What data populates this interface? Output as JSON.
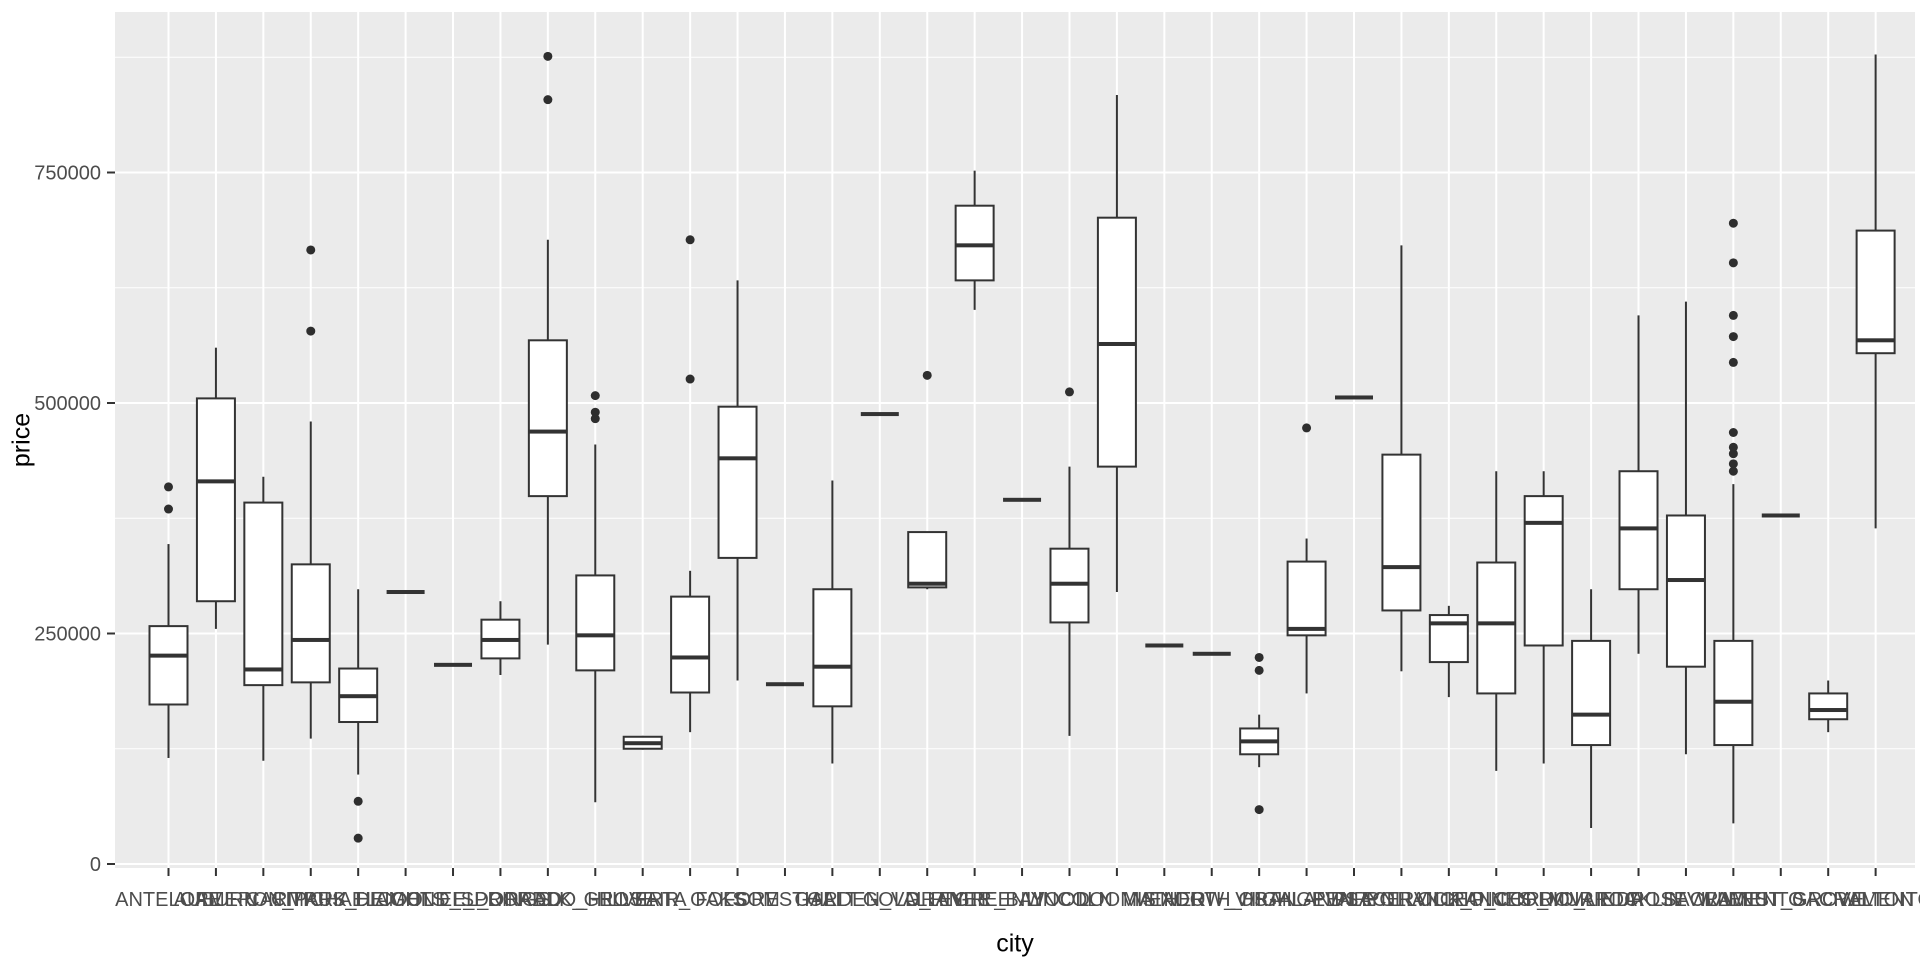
{
  "style": {
    "background": "#FFFFFF",
    "panel_background": "#EBEBEB",
    "grid_color": "#FFFFFF",
    "box_stroke": "#333333",
    "box_fill": "#FFFFFF",
    "outlier_color": "#2E2E2E",
    "axis_text_color": "#4D4D4D",
    "axis_title_color": "#000000",
    "tick_color": "#333333"
  },
  "chart_data": {
    "type": "boxplot",
    "title": "",
    "xlabel": "city",
    "ylabel": "price",
    "grid": true,
    "legend": "none",
    "ylim": [
      -4300,
      924000
    ],
    "y_breaks": [
      0,
      250000,
      500000,
      750000
    ],
    "y_break_labels": [
      "0",
      "250000",
      "500000",
      "750000"
    ],
    "y_minor_breaks": [
      125000,
      375000,
      625000,
      875000
    ],
    "categories": [
      "ANTELOPE",
      "AUBURN",
      "CAMERON_PARK",
      "CARMICHAEL",
      "CITRUS_HEIGHTS",
      "COOL",
      "DIAMOND_SPRINGS",
      "EL_DORADO",
      "EL_DORADO_HILLS",
      "ELK_GROVE",
      "ELVERTA",
      "FAIR_OAKS",
      "FOLSOM",
      "FORESTHILL",
      "GALT",
      "GARDEN_VALLEY",
      "GOLD_RIVER",
      "GRANITE_BAY",
      "GREENWOOD",
      "LINCOLN",
      "LOOMIS",
      "MATHER",
      "MEADOW_VISTA",
      "NORTH_HIGHLANDS",
      "ORANGEVALE",
      "PENRYN",
      "PLACERVILLE",
      "POLLOCK_PINES",
      "RANCHO_CORDOVA",
      "RANCHO_MURIETA",
      "RIO_LINDA",
      "ROCKLIN",
      "ROSEVILLE",
      "SACRAMENTO",
      "WALNUT_GROVE",
      "WEST_SACRAMENTO",
      "WILTON"
    ],
    "series": [
      {
        "city": "ANTELOPE",
        "low": 115000,
        "q1": 173000,
        "median": 226000,
        "q3": 258000,
        "high": 347000,
        "outliers": [
          385000,
          409000
        ]
      },
      {
        "city": "AUBURN",
        "low": 255000,
        "q1": 285000,
        "median": 415000,
        "q3": 505000,
        "high": 560000,
        "outliers": []
      },
      {
        "city": "CAMERON_PARK",
        "low": 112000,
        "q1": 194000,
        "median": 211000,
        "q3": 392000,
        "high": 420000,
        "outliers": []
      },
      {
        "city": "CARMICHAEL",
        "low": 136000,
        "q1": 197000,
        "median": 243000,
        "q3": 325000,
        "high": 480000,
        "outliers": [
          578000,
          666000
        ]
      },
      {
        "city": "CITRUS_HEIGHTS",
        "low": 97000,
        "q1": 154000,
        "median": 182000,
        "q3": 212000,
        "high": 298000,
        "outliers": [
          68000,
          28000
        ]
      },
      {
        "city": "COOL",
        "low": 295000,
        "q1": 295000,
        "median": 295000,
        "q3": 295000,
        "high": 295000,
        "outliers": []
      },
      {
        "city": "DIAMOND_SPRINGS",
        "low": 216000,
        "q1": 216000,
        "median": 216000,
        "q3": 216000,
        "high": 216000,
        "outliers": []
      },
      {
        "city": "EL_DORADO",
        "low": 205000,
        "q1": 223000,
        "median": 243000,
        "q3": 265000,
        "high": 285000,
        "outliers": []
      },
      {
        "city": "EL_DORADO_HILLS",
        "low": 238000,
        "q1": 399000,
        "median": 469000,
        "q3": 568000,
        "high": 677000,
        "outliers": [
          829000,
          876000
        ]
      },
      {
        "city": "ELK_GROVE",
        "low": 67000,
        "q1": 210000,
        "median": 248000,
        "q3": 313000,
        "high": 455000,
        "outliers": [
          483000,
          490000,
          508000
        ]
      },
      {
        "city": "ELVERTA",
        "low": 124000,
        "q1": 125000,
        "median": 131000,
        "q3": 138000,
        "high": 139000,
        "outliers": []
      },
      {
        "city": "FAIR_OAKS",
        "low": 143000,
        "q1": 186000,
        "median": 224000,
        "q3": 290000,
        "high": 318000,
        "outliers": [
          526000,
          677000
        ]
      },
      {
        "city": "FOLSOM",
        "low": 199000,
        "q1": 332000,
        "median": 440000,
        "q3": 496000,
        "high": 633000,
        "outliers": []
      },
      {
        "city": "FORESTHILL",
        "low": 195000,
        "q1": 195000,
        "median": 195000,
        "q3": 195000,
        "high": 195000,
        "outliers": []
      },
      {
        "city": "GALT",
        "low": 109000,
        "q1": 171000,
        "median": 214000,
        "q3": 298000,
        "high": 416000,
        "outliers": []
      },
      {
        "city": "GARDEN_VALLEY",
        "low": 488000,
        "q1": 488000,
        "median": 488000,
        "q3": 488000,
        "high": 488000,
        "outliers": []
      },
      {
        "city": "GOLD_RIVER",
        "low": 298000,
        "q1": 300000,
        "median": 304000,
        "q3": 360000,
        "high": 360000,
        "outliers": [
          530000
        ]
      },
      {
        "city": "GRANITE_BAY",
        "low": 601000,
        "q1": 633000,
        "median": 671000,
        "q3": 714000,
        "high": 752000,
        "outliers": []
      },
      {
        "city": "GREENWOOD",
        "low": 395000,
        "q1": 395000,
        "median": 395000,
        "q3": 395000,
        "high": 395000,
        "outliers": []
      },
      {
        "city": "LINCOLN",
        "low": 139000,
        "q1": 262000,
        "median": 304000,
        "q3": 342000,
        "high": 431000,
        "outliers": [
          512000
        ]
      },
      {
        "city": "LOOMIS",
        "low": 295000,
        "q1": 431000,
        "median": 564000,
        "q3": 701000,
        "high": 834000,
        "outliers": []
      },
      {
        "city": "MATHER",
        "low": 237000,
        "q1": 237000,
        "median": 237000,
        "q3": 237000,
        "high": 237000,
        "outliers": []
      },
      {
        "city": "MEADOW_VISTA",
        "low": 228000,
        "q1": 228000,
        "median": 228000,
        "q3": 228000,
        "high": 228000,
        "outliers": []
      },
      {
        "city": "NORTH_HIGHLANDS",
        "low": 105000,
        "q1": 119000,
        "median": 133000,
        "q3": 147000,
        "high": 162000,
        "outliers": [
          59000,
          210000,
          224000
        ]
      },
      {
        "city": "ORANGEVALE",
        "low": 185000,
        "q1": 248000,
        "median": 255000,
        "q3": 328000,
        "high": 353000,
        "outliers": [
          473000
        ]
      },
      {
        "city": "PENRYN",
        "low": 506000,
        "q1": 506000,
        "median": 506000,
        "q3": 506000,
        "high": 506000,
        "outliers": []
      },
      {
        "city": "PLACERVILLE",
        "low": 209000,
        "q1": 275000,
        "median": 322000,
        "q3": 444000,
        "high": 671000,
        "outliers": []
      },
      {
        "city": "POLLOCK_PINES",
        "low": 181000,
        "q1": 219000,
        "median": 261000,
        "q3": 270000,
        "high": 280000,
        "outliers": []
      },
      {
        "city": "RANCHO_CORDOVA",
        "low": 101000,
        "q1": 185000,
        "median": 261000,
        "q3": 327000,
        "high": 426000,
        "outliers": []
      },
      {
        "city": "RANCHO_MURIETA",
        "low": 109000,
        "q1": 237000,
        "median": 370000,
        "q3": 399000,
        "high": 426000,
        "outliers": []
      },
      {
        "city": "RIO_LINDA",
        "low": 39000,
        "q1": 129000,
        "median": 162000,
        "q3": 242000,
        "high": 298000,
        "outliers": []
      },
      {
        "city": "ROCKLIN",
        "low": 228000,
        "q1": 298000,
        "median": 364000,
        "q3": 426000,
        "high": 595000,
        "outliers": []
      },
      {
        "city": "ROSEVILLE",
        "low": 119000,
        "q1": 214000,
        "median": 308000,
        "q3": 378000,
        "high": 610000,
        "outliers": []
      },
      {
        "city": "SACRAMENTO",
        "low": 44000,
        "q1": 129000,
        "median": 176000,
        "q3": 242000,
        "high": 412000,
        "outliers": [
          426000,
          434000,
          445000,
          452000,
          468000,
          544000,
          572000,
          595000,
          652000,
          695000
        ]
      },
      {
        "city": "WALNUT_GROVE",
        "low": 378000,
        "q1": 378000,
        "median": 378000,
        "q3": 378000,
        "high": 378000,
        "outliers": []
      },
      {
        "city": "WEST_SACRAMENTO",
        "low": 143000,
        "q1": 157000,
        "median": 167000,
        "q3": 185000,
        "high": 199000,
        "outliers": []
      },
      {
        "city": "WILTON",
        "low": 364000,
        "q1": 554000,
        "median": 568000,
        "q3": 687000,
        "high": 878000,
        "outliers": []
      }
    ]
  }
}
